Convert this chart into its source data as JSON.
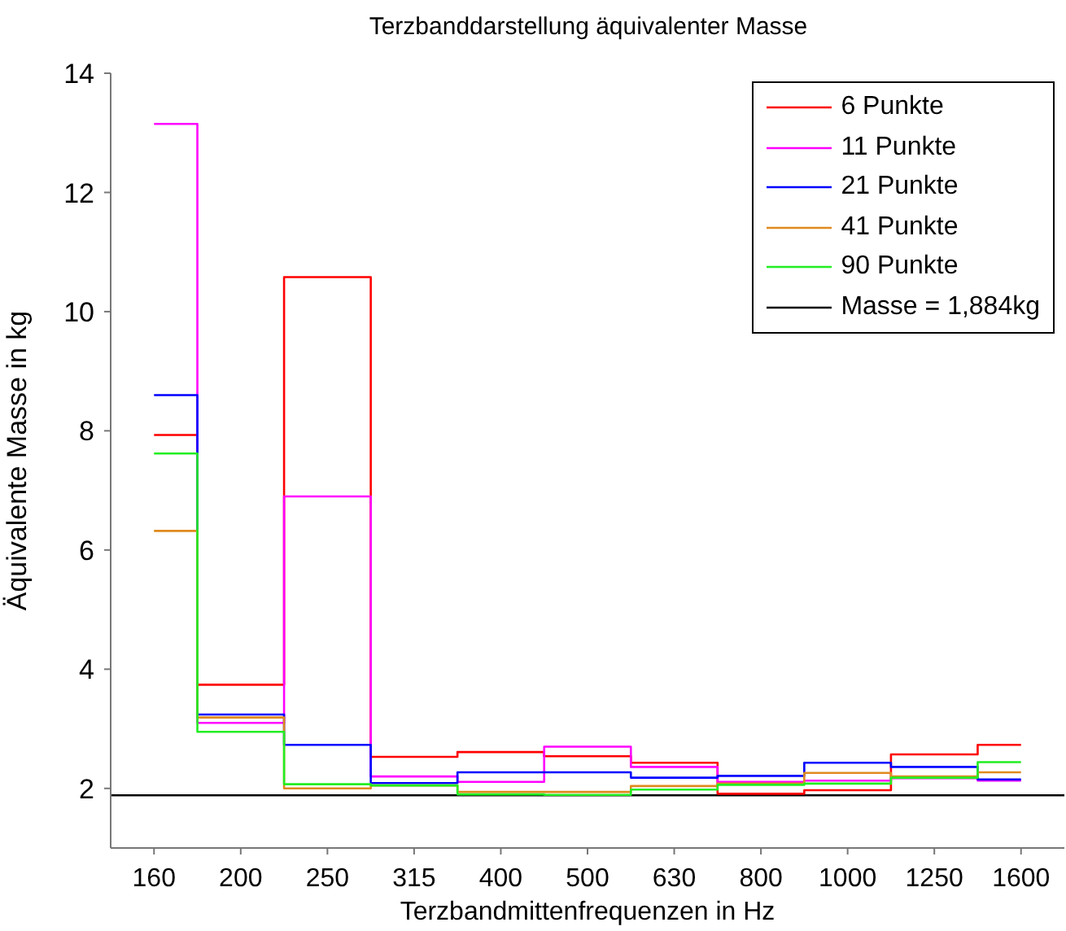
{
  "chart_data": {
    "type": "step",
    "title": "Terzbanddarstellung äquivalenter Masse",
    "xlabel": "Terzbandmittenfrequenzen in Hz",
    "ylabel": "Äquivalente Masse in kg",
    "categories": [
      "160",
      "200",
      "250",
      "315",
      "400",
      "500",
      "630",
      "800",
      "1000",
      "1250",
      "1600"
    ],
    "series": [
      {
        "name": "6 Punkte",
        "color": "#ff0000",
        "values": [
          7.93,
          3.74,
          10.58,
          2.53,
          2.61,
          2.54,
          2.43,
          1.91,
          1.97,
          2.57,
          2.73
        ]
      },
      {
        "name": "11 Punkte",
        "color": "#ff00ff",
        "values": [
          13.15,
          3.1,
          6.9,
          2.2,
          2.11,
          2.7,
          2.36,
          2.11,
          2.13,
          2.17,
          2.13
        ]
      },
      {
        "name": "21 Punkte",
        "color": "#0000ff",
        "values": [
          8.6,
          3.24,
          2.73,
          2.09,
          2.27,
          2.27,
          2.18,
          2.21,
          2.43,
          2.36,
          2.15
        ]
      },
      {
        "name": "41 Punkte",
        "color": "#e08a1e",
        "values": [
          6.32,
          3.19,
          2.0,
          2.05,
          1.94,
          1.94,
          2.04,
          2.08,
          2.26,
          2.2,
          2.27
        ]
      },
      {
        "name": "90 Punkte",
        "color": "#22ee22",
        "values": [
          7.62,
          2.95,
          2.07,
          2.05,
          1.9,
          1.89,
          1.98,
          2.06,
          2.08,
          2.18,
          2.44
        ]
      }
    ],
    "ref_lines": [
      {
        "axis": "y",
        "value": 1.884,
        "label": "Masse = 1,884kg",
        "color": "#000000"
      }
    ],
    "ylim": [
      1,
      14
    ],
    "yticks": [
      2,
      4,
      6,
      8,
      10,
      12,
      14
    ],
    "legend": "top right",
    "grid": false
  }
}
